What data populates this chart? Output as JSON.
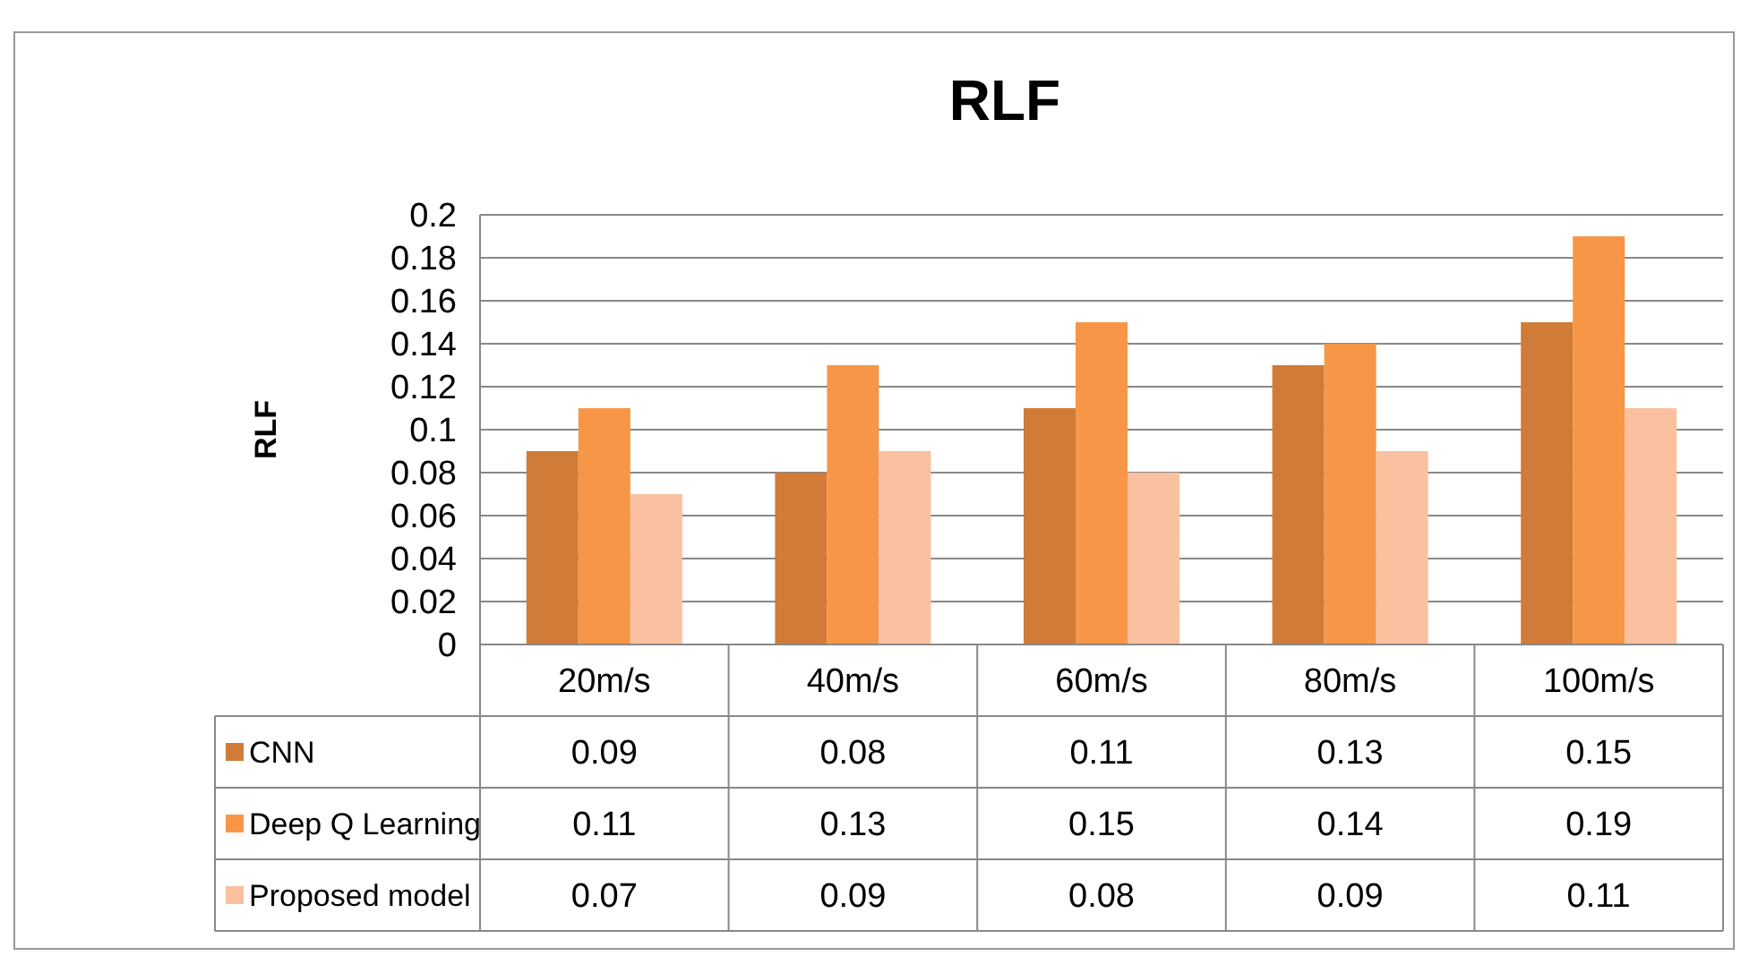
{
  "chart_data": {
    "type": "bar",
    "title": "RLF",
    "ylabel": "RLF",
    "categories": [
      "20m/s",
      "40m/s",
      "60m/s",
      "80m/s",
      "100m/s"
    ],
    "series": [
      {
        "name": "CNN",
        "color": "#d07b38",
        "values": [
          0.09,
          0.08,
          0.11,
          0.13,
          0.15
        ]
      },
      {
        "name": "Deep Q Learning",
        "color": "#f79646",
        "values": [
          0.11,
          0.13,
          0.15,
          0.14,
          0.19
        ]
      },
      {
        "name": "Proposed model",
        "color": "#fac09f",
        "values": [
          0.07,
          0.09,
          0.08,
          0.09,
          0.11
        ]
      }
    ],
    "ylim": [
      0,
      0.2
    ],
    "yticks": [
      0,
      0.02,
      0.04,
      0.06,
      0.08,
      0.1,
      0.12,
      0.14,
      0.16,
      0.18,
      0.2
    ],
    "grid": "y",
    "legend": "bottom",
    "data_labels": true
  }
}
